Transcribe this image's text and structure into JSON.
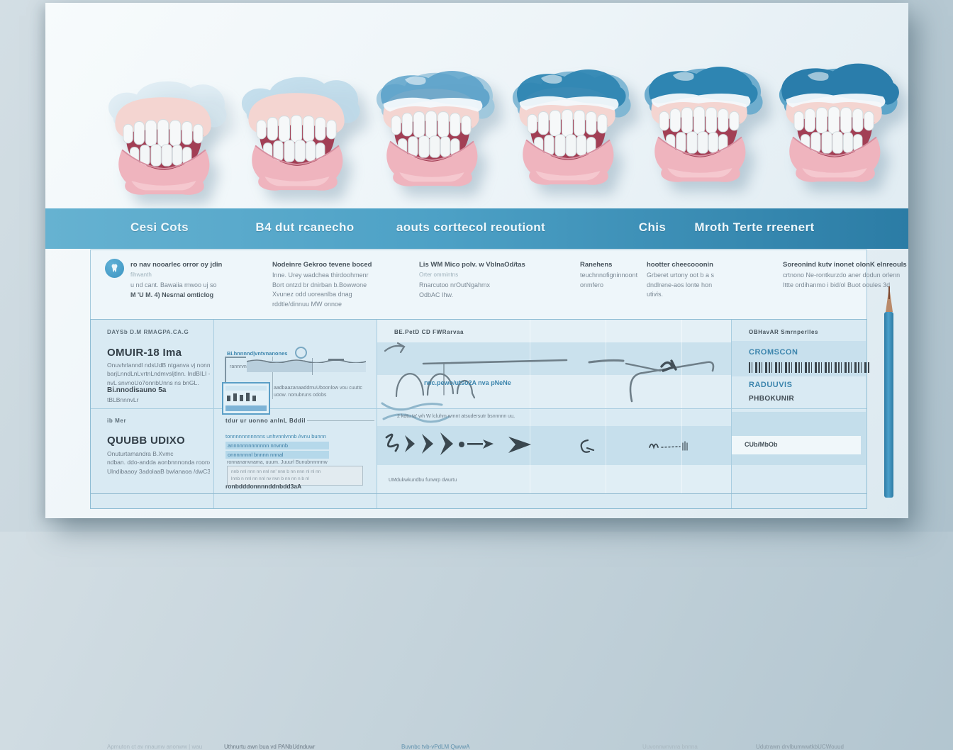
{
  "header": {
    "columns": [
      "Cesi Cots",
      "B4 dut rcanecho",
      "aouts corttecol reoutiont",
      "Chis",
      "Mroth Terte rreenert"
    ]
  },
  "info_row": {
    "blocks": [
      {
        "icon": "tooth-badge-icon",
        "title": "ro nav nooarlec orror oy jdin",
        "subtitle": "fihwanth",
        "lines": [
          "u nd cant. Bawaiia mwoo uj so",
          "M 'U M. 4) Nesrnal omticlog"
        ]
      },
      {
        "title": "Nodeinre Gekroo tevene boced",
        "lines": [
          "Inne. Urey wadchea thirdoohmenr",
          "Bort ontzd br dnirban b.Bowwone",
          "Xvunez odd uoreanlba dnag",
          "rddtle/dinnuu MW onnoe"
        ]
      },
      {
        "title": "Lis WM Mico polv. w VblnaOd/tas",
        "lines": [
          "Orter ommintns",
          "Rnarcutoo nrOutNgahmx",
          "OdbAC Ihw."
        ]
      },
      {
        "title": "Ranehens",
        "lines": [
          "teuchnnofigninnoont",
          "onmfero"
        ]
      },
      {
        "title": "hootter cheecooonin",
        "lines": [
          "Grberet urtony oot b a s",
          "dndlrene-aos lonte hon",
          "utivis."
        ]
      },
      {
        "title": "Soreonind kutv inonet olonK elnreouls",
        "lines": [
          "crtnono Ne-rontkurzdo aner dodun orlenn",
          "Ittte ordihanmo i bid/ol Buot ooules 3d"
        ]
      }
    ]
  },
  "table": {
    "col1_top": {
      "eyebrow": "DAYSb D.M RMAGPA.CA.G",
      "title": "OMUIR-18 Ima",
      "lines": [
        "Onuvhrlanndl ndsUdB ntganva vj nonnv/020",
        "barjLnndLnLvrtnLndmvsljtlnn. IndBILI -lvLs",
        "nvL snvnoUo7onnbUnns ns bnGL."
      ],
      "sub": "Bi.nnodisauno 5a",
      "sub_note": "tBLBnnnvLr"
    },
    "col1_bottom": {
      "eyebrow": "ib Mer",
      "title": "QUUBB UDIXO",
      "lines": [
        "Onuturtamandra B.Xvmc",
        "ndban. ddo-andda aonbnnnonda roonxlooj",
        "Ulndibaaoy 3adolaaB bwlanaoa /dwC3"
      ]
    },
    "col2_top": {
      "label": "Bi.hnnnnd|vntvnanones",
      "bracket_label": "rannrvnnl",
      "box_lines": [
        "aadbaazanaaddmuUboonlow vou cuuttc",
        "uoow. nonubruns odobs"
      ]
    },
    "col2_bottom": {
      "header": "tdur ur uonno anlnL Bddil",
      "intro": "tonnnnnnnnnnns unhvnnlvnnb Avnu bunnn",
      "highlight_lines": [
        "annnnnnnnnnnnn nnvnnb",
        "onnnnnnnl bnnnn nnnal"
      ],
      "gray_line": "ronnananvnama, uuum.  Juuurl Bunubnnnnnw",
      "box_lines": [
        "nnb nnl nnn nn nnl nn' nnn b nn nnn nl nl nn",
        "lnnb n nnl nn nnl nv nvn b nn nn n b nl"
      ],
      "footer": "ronbdddonnnnddnbdd3aA"
    },
    "mid": {
      "header": "BE.PetD CD FWRarvaa",
      "caption_blue": "rwc.pewo/utso2A nva pNeNe",
      "row2_caption": "2 kdtu ta' wh W lcluhm wmnt atsudersutr bsnnnnn uu,",
      "row2_footer": "UMdukwkundbu funwrp dwurtu"
    },
    "col4_top": {
      "header": "OBHavAR Smrnperlles",
      "line1": "CROMSCON",
      "line2": "RADUUVIS",
      "line3": "PHBOKUNIR"
    },
    "col4_bottom": {
      "band": "CUb/MbOb"
    }
  },
  "footer": {
    "cells": [
      "Apmuton ct av nnaunw anonww | wau",
      "Uthnurtu awn bua vd PANbUdnduwr",
      "Buvnbc tvb-vPdLM QwvwA",
      "Uuvonnwnvnra bnnna",
      "Udutrawn drvlbumwwtkbUCWouud"
    ]
  },
  "colors": {
    "header_gradient_from": "#66b2d1",
    "header_gradient_to": "#2b7ca5",
    "accent_blue": "#3c85ad",
    "table_bg": "#d9eaf3",
    "pencil_blue": "#3e94c0"
  }
}
